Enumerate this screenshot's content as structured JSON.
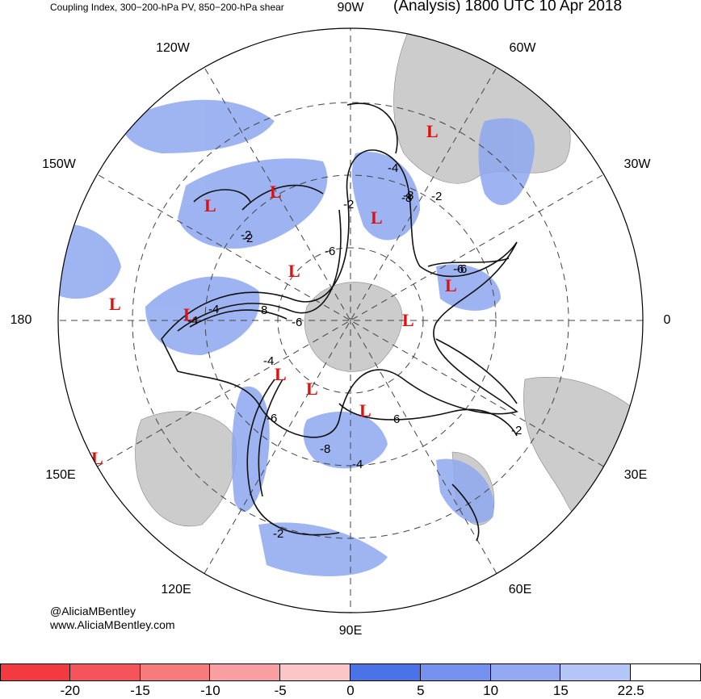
{
  "header": {
    "left_title": "Coupling Index, 300−200-hPa PV, 850−200-hPa shear",
    "right_title": "(Analysis) 1800 UTC 10 Apr 2018"
  },
  "longitude_labels": {
    "top": "90W",
    "upper_left": "120W",
    "upper_right": "60W",
    "left_upper": "150W",
    "right_upper": "30W",
    "left": "180",
    "right": "0",
    "left_lower": "150E",
    "right_lower": "30E",
    "lower_left": "120E",
    "lower_right": "60E",
    "bottom": "90E"
  },
  "credits": {
    "handle": "@AliciaMBentley",
    "website": "www.AliciaMBentley.com"
  },
  "colorbar": {
    "colors": [
      "#f23a3f",
      "#f5555a",
      "#f77a7d",
      "#f99fa1",
      "#fcc6c7",
      "#4b73e8",
      "#7592ee",
      "#93aaf2",
      "#b4c6f7",
      "#ffffff"
    ],
    "tick_labels": [
      "-20",
      "-15",
      "-10",
      "-5",
      "0",
      "5",
      "10",
      "15",
      "22.5"
    ]
  },
  "map": {
    "land_color": "#cccccc",
    "shading_color": "#8ea8f0",
    "contour_color": "#111111",
    "low_marker_color": "#e01010",
    "low_marker_label": "L",
    "contour_labels": [
      "-2",
      "-4",
      "-6",
      "-8",
      "-2",
      "-6",
      "-4",
      "-8",
      "-6",
      "-4",
      "-6",
      "-8",
      "-6",
      "-2",
      "-8",
      "-4",
      "-2",
      "-6",
      "-2",
      "-4",
      "-2"
    ]
  }
}
